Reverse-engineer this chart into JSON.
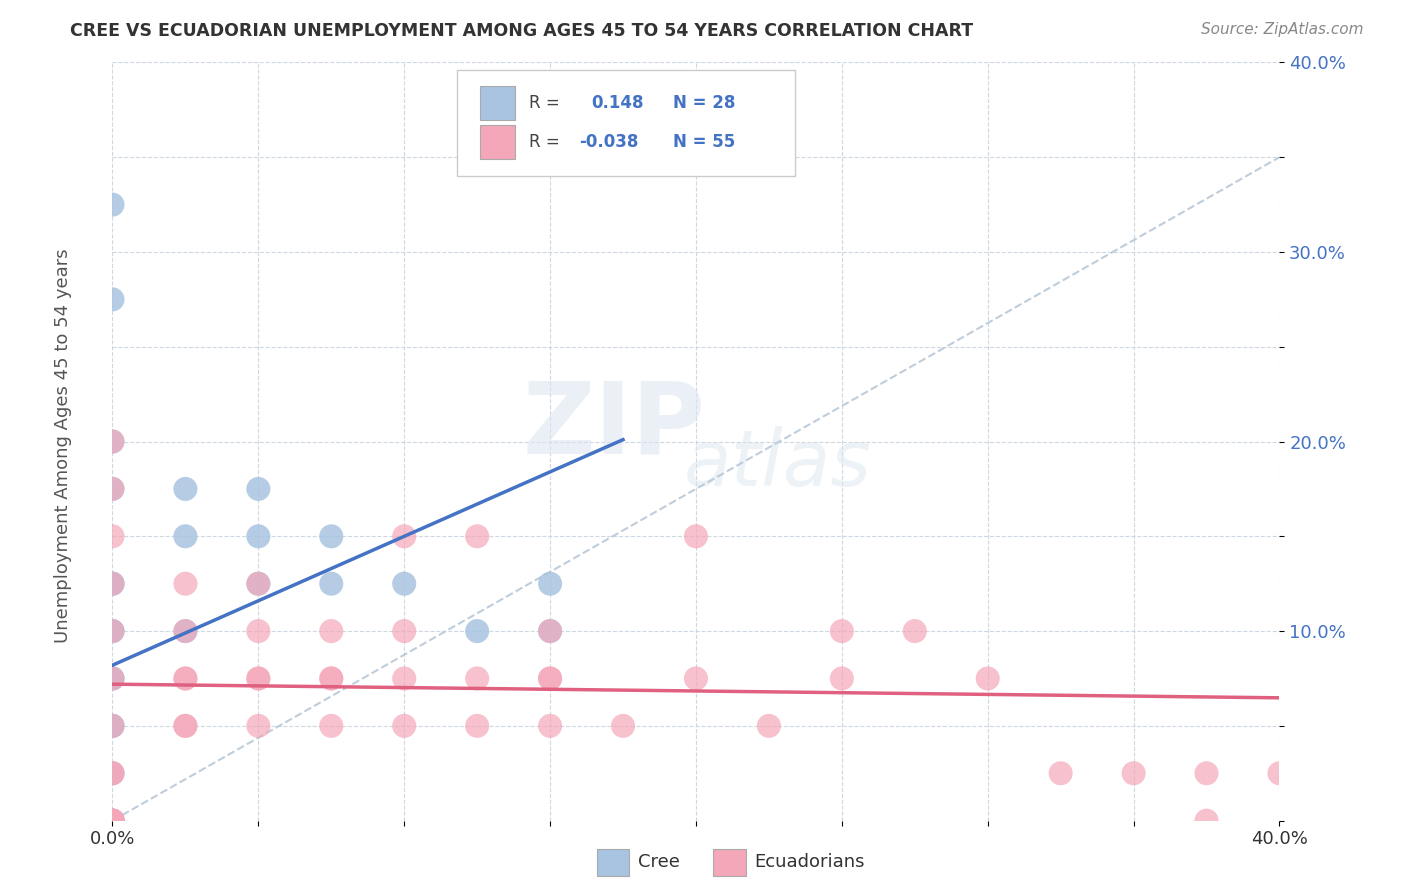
{
  "title": "CREE VS ECUADORIAN UNEMPLOYMENT AMONG AGES 45 TO 54 YEARS CORRELATION CHART",
  "source": "Source: ZipAtlas.com",
  "ylabel": "Unemployment Among Ages 45 to 54 years",
  "xlim": [
    0.0,
    0.4
  ],
  "ylim": [
    0.0,
    0.4
  ],
  "xticks": [
    0.0,
    0.05,
    0.1,
    0.15,
    0.2,
    0.25,
    0.3,
    0.35,
    0.4
  ],
  "yticks": [
    0.0,
    0.05,
    0.1,
    0.15,
    0.2,
    0.25,
    0.3,
    0.35,
    0.4
  ],
  "cree_color": "#a8c4e0",
  "ecuadorian_color": "#f4a7b9",
  "cree_line_color": "#4472c4",
  "ecuadorian_line_color": "#e06080",
  "diagonal_color": "#b8c8d8",
  "background_color": "#ffffff",
  "cree_R": 0.148,
  "cree_N": 28,
  "ecuadorian_R": -0.038,
  "ecuadorian_N": 55,
  "cree_x": [
    0.0,
    0.0,
    0.0,
    0.0,
    0.0,
    0.0,
    0.0,
    0.0,
    0.025,
    0.025,
    0.025,
    0.05,
    0.05,
    0.05,
    0.075,
    0.075,
    0.1,
    0.125,
    0.15,
    0.15,
    0.0,
    0.0,
    0.0,
    0.0,
    0.0,
    0.0,
    0.0,
    0.0
  ],
  "cree_y": [
    0.0,
    0.0,
    0.05,
    0.075,
    0.1,
    0.125,
    0.275,
    0.325,
    0.1,
    0.15,
    0.175,
    0.125,
    0.15,
    0.175,
    0.125,
    0.15,
    0.125,
    0.1,
    0.1,
    0.125,
    0.0,
    0.025,
    0.05,
    0.075,
    0.1,
    0.125,
    0.175,
    0.2
  ],
  "ecuadorian_x": [
    0.0,
    0.0,
    0.0,
    0.0,
    0.0,
    0.0,
    0.0,
    0.0,
    0.0,
    0.0,
    0.025,
    0.025,
    0.025,
    0.025,
    0.025,
    0.025,
    0.05,
    0.05,
    0.05,
    0.05,
    0.05,
    0.075,
    0.075,
    0.075,
    0.075,
    0.1,
    0.1,
    0.1,
    0.1,
    0.125,
    0.125,
    0.125,
    0.15,
    0.15,
    0.15,
    0.15,
    0.175,
    0.2,
    0.2,
    0.225,
    0.25,
    0.25,
    0.275,
    0.3,
    0.325,
    0.35,
    0.375,
    0.375,
    0.4,
    0.0,
    0.0,
    0.0,
    0.0,
    0.0,
    0.0
  ],
  "ecuadorian_y": [
    0.0,
    0.025,
    0.05,
    0.075,
    0.1,
    0.125,
    0.15,
    0.175,
    0.2,
    0.025,
    0.05,
    0.075,
    0.1,
    0.125,
    0.05,
    0.075,
    0.05,
    0.075,
    0.1,
    0.075,
    0.125,
    0.05,
    0.075,
    0.1,
    0.075,
    0.05,
    0.075,
    0.1,
    0.15,
    0.075,
    0.05,
    0.15,
    0.05,
    0.075,
    0.1,
    0.075,
    0.05,
    0.075,
    0.15,
    0.05,
    0.075,
    0.1,
    0.1,
    0.075,
    0.025,
    0.025,
    0.0,
    0.025,
    0.025,
    0.0,
    0.0,
    0.0,
    0.0,
    0.0,
    0.0
  ]
}
